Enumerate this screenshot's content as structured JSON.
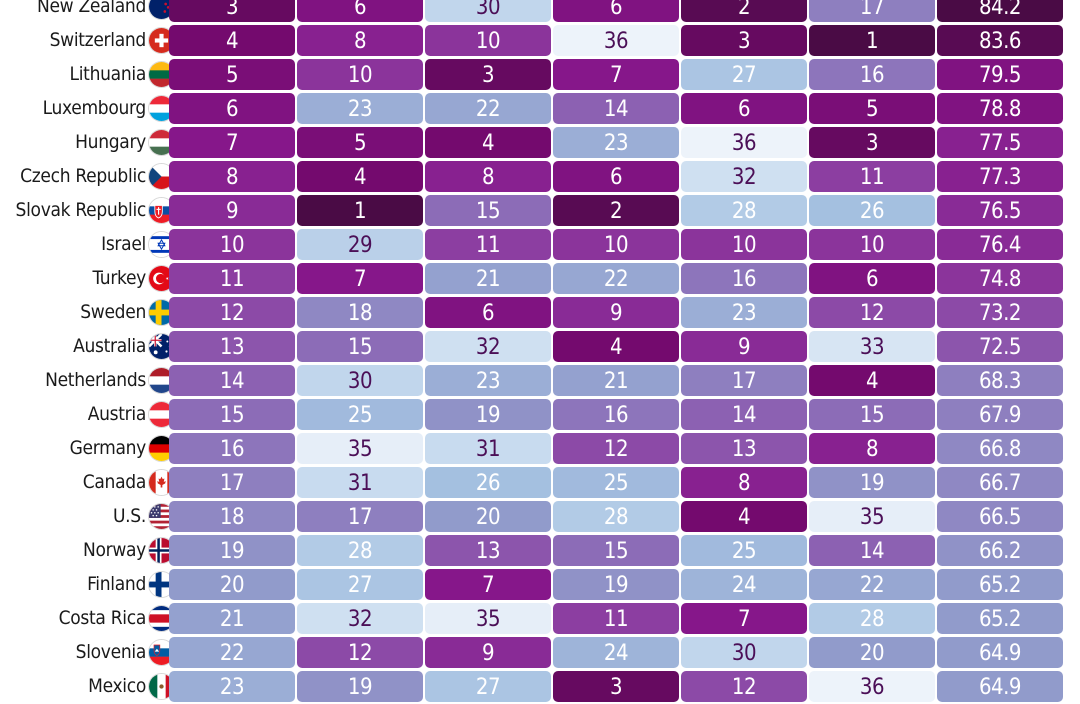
{
  "chart_data": {
    "type": "table",
    "columns_visible": 7,
    "rows": [
      {
        "country": "New Zealand",
        "flag": "new-zealand",
        "values": [
          "3",
          "6",
          "30",
          "6",
          "2",
          "17",
          "84.2"
        ]
      },
      {
        "country": "Switzerland",
        "flag": "switzerland",
        "values": [
          "4",
          "8",
          "10",
          "36",
          "3",
          "1",
          "83.6"
        ]
      },
      {
        "country": "Lithuania",
        "flag": "lithuania",
        "values": [
          "5",
          "10",
          "3",
          "7",
          "27",
          "16",
          "79.5"
        ]
      },
      {
        "country": "Luxembourg",
        "flag": "luxembourg",
        "values": [
          "6",
          "23",
          "22",
          "14",
          "6",
          "5",
          "78.8"
        ]
      },
      {
        "country": "Hungary",
        "flag": "hungary",
        "values": [
          "7",
          "5",
          "4",
          "23",
          "36",
          "3",
          "77.5"
        ]
      },
      {
        "country": "Czech Republic",
        "flag": "czech-republic",
        "values": [
          "8",
          "4",
          "8",
          "6",
          "32",
          "11",
          "77.3"
        ]
      },
      {
        "country": "Slovak Republic",
        "flag": "slovak-republic",
        "values": [
          "9",
          "1",
          "15",
          "2",
          "28",
          "26",
          "76.5"
        ]
      },
      {
        "country": "Israel",
        "flag": "israel",
        "values": [
          "10",
          "29",
          "11",
          "10",
          "10",
          "10",
          "76.4"
        ]
      },
      {
        "country": "Turkey",
        "flag": "turkey",
        "values": [
          "11",
          "7",
          "21",
          "22",
          "16",
          "6",
          "74.8"
        ]
      },
      {
        "country": "Sweden",
        "flag": "sweden",
        "values": [
          "12",
          "18",
          "6",
          "9",
          "23",
          "12",
          "73.2"
        ]
      },
      {
        "country": "Australia",
        "flag": "australia",
        "values": [
          "13",
          "15",
          "32",
          "4",
          "9",
          "33",
          "72.5"
        ]
      },
      {
        "country": "Netherlands",
        "flag": "netherlands",
        "values": [
          "14",
          "30",
          "23",
          "21",
          "17",
          "4",
          "68.3"
        ]
      },
      {
        "country": "Austria",
        "flag": "austria",
        "values": [
          "15",
          "25",
          "19",
          "16",
          "14",
          "15",
          "67.9"
        ]
      },
      {
        "country": "Germany",
        "flag": "germany",
        "values": [
          "16",
          "35",
          "31",
          "12",
          "13",
          "8",
          "66.8"
        ]
      },
      {
        "country": "Canada",
        "flag": "canada",
        "values": [
          "17",
          "31",
          "26",
          "25",
          "8",
          "19",
          "66.7"
        ]
      },
      {
        "country": "U.S.",
        "flag": "united-states",
        "values": [
          "18",
          "17",
          "20",
          "28",
          "4",
          "35",
          "66.5"
        ]
      },
      {
        "country": "Norway",
        "flag": "norway",
        "values": [
          "19",
          "28",
          "13",
          "15",
          "25",
          "14",
          "66.2"
        ]
      },
      {
        "country": "Finland",
        "flag": "finland",
        "values": [
          "20",
          "27",
          "7",
          "19",
          "24",
          "22",
          "65.2"
        ]
      },
      {
        "country": "Costa Rica",
        "flag": "costa-rica",
        "values": [
          "21",
          "32",
          "35",
          "11",
          "7",
          "28",
          "65.2"
        ]
      },
      {
        "country": "Slovenia",
        "flag": "slovenia",
        "values": [
          "22",
          "12",
          "9",
          "24",
          "30",
          "20",
          "64.9"
        ]
      },
      {
        "country": "Mexico",
        "flag": "mexico",
        "values": [
          "23",
          "19",
          "27",
          "3",
          "12",
          "36",
          "64.9"
        ]
      }
    ]
  }
}
